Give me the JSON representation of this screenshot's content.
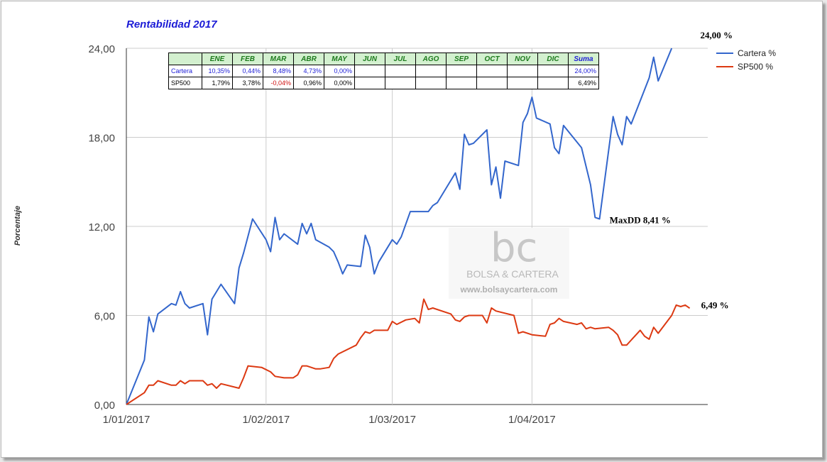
{
  "title": "Rentabilidad 2017",
  "chart_data": {
    "type": "line",
    "title": "Rentabilidad 2017",
    "ylabel": "Porcentaje",
    "xlabel": "",
    "ylim": [
      0,
      24
    ],
    "yticks": [
      0,
      6,
      12,
      18,
      24
    ],
    "ytick_labels": [
      "0,00",
      "6,00",
      "12,00",
      "18,00",
      "24,00"
    ],
    "xlim": [
      "2017-01-01",
      "2017-05-10"
    ],
    "xticks": [
      "2017-01-01",
      "2017-02-01",
      "2017-03-01",
      "2017-04-01"
    ],
    "xtick_labels": [
      "1/01/2017",
      "1/02/2017",
      "1/03/2017",
      "1/04/2017"
    ],
    "grid": true,
    "legend_position": "top-right",
    "series": [
      {
        "name": "Cartera %",
        "color": "#3366cc",
        "points": [
          [
            "2017-01-01",
            0.0
          ],
          [
            "2017-01-05",
            3.0
          ],
          [
            "2017-01-06",
            5.9
          ],
          [
            "2017-01-07",
            4.9
          ],
          [
            "2017-01-08",
            6.1
          ],
          [
            "2017-01-11",
            6.8
          ],
          [
            "2017-01-12",
            6.7
          ],
          [
            "2017-01-13",
            7.6
          ],
          [
            "2017-01-14",
            6.8
          ],
          [
            "2017-01-15",
            6.5
          ],
          [
            "2017-01-18",
            6.8
          ],
          [
            "2017-01-19",
            4.7
          ],
          [
            "2017-01-20",
            7.1
          ],
          [
            "2017-01-22",
            8.1
          ],
          [
            "2017-01-25",
            6.8
          ],
          [
            "2017-01-26",
            9.2
          ],
          [
            "2017-01-27",
            10.2
          ],
          [
            "2017-01-29",
            12.5
          ],
          [
            "2017-02-01",
            11.1
          ],
          [
            "2017-02-02",
            10.3
          ],
          [
            "2017-02-03",
            12.6
          ],
          [
            "2017-02-04",
            11.1
          ],
          [
            "2017-02-05",
            11.5
          ],
          [
            "2017-02-08",
            10.8
          ],
          [
            "2017-02-09",
            12.2
          ],
          [
            "2017-02-10",
            11.5
          ],
          [
            "2017-02-11",
            12.2
          ],
          [
            "2017-02-12",
            11.1
          ],
          [
            "2017-02-15",
            10.6
          ],
          [
            "2017-02-16",
            10.3
          ],
          [
            "2017-02-17",
            9.6
          ],
          [
            "2017-02-18",
            8.8
          ],
          [
            "2017-02-19",
            9.4
          ],
          [
            "2017-02-22",
            9.3
          ],
          [
            "2017-02-23",
            11.4
          ],
          [
            "2017-02-24",
            10.6
          ],
          [
            "2017-02-25",
            8.8
          ],
          [
            "2017-02-26",
            9.6
          ],
          [
            "2017-03-01",
            11.1
          ],
          [
            "2017-03-02",
            10.8
          ],
          [
            "2017-03-03",
            11.3
          ],
          [
            "2017-03-05",
            13.0
          ],
          [
            "2017-03-09",
            13.0
          ],
          [
            "2017-03-10",
            13.4
          ],
          [
            "2017-03-11",
            13.6
          ],
          [
            "2017-03-12",
            14.1
          ],
          [
            "2017-03-15",
            15.6
          ],
          [
            "2017-03-16",
            14.5
          ],
          [
            "2017-03-17",
            18.2
          ],
          [
            "2017-03-18",
            17.5
          ],
          [
            "2017-03-19",
            17.6
          ],
          [
            "2017-03-22",
            18.5
          ],
          [
            "2017-03-23",
            14.8
          ],
          [
            "2017-03-24",
            16.0
          ],
          [
            "2017-03-25",
            13.9
          ],
          [
            "2017-03-26",
            16.4
          ],
          [
            "2017-03-29",
            16.1
          ],
          [
            "2017-03-30",
            19.0
          ],
          [
            "2017-03-31",
            19.6
          ],
          [
            "2017-04-01",
            20.7
          ],
          [
            "2017-04-02",
            19.3
          ],
          [
            "2017-04-05",
            18.9
          ],
          [
            "2017-04-06",
            17.3
          ],
          [
            "2017-04-07",
            16.9
          ],
          [
            "2017-04-08",
            18.8
          ],
          [
            "2017-04-12",
            17.3
          ],
          [
            "2017-04-14",
            14.8
          ],
          [
            "2017-04-15",
            12.6
          ],
          [
            "2017-04-16",
            12.5
          ],
          [
            "2017-04-19",
            19.4
          ],
          [
            "2017-04-20",
            18.2
          ],
          [
            "2017-04-21",
            17.5
          ],
          [
            "2017-04-22",
            19.4
          ],
          [
            "2017-04-23",
            18.9
          ],
          [
            "2017-04-27",
            22.0
          ],
          [
            "2017-04-28",
            23.4
          ],
          [
            "2017-04-29",
            21.8
          ],
          [
            "2017-05-02",
            24.0
          ]
        ]
      },
      {
        "name": "SP500 %",
        "color": "#dc3912",
        "points": [
          [
            "2017-01-01",
            0.0
          ],
          [
            "2017-01-05",
            0.8
          ],
          [
            "2017-01-06",
            1.3
          ],
          [
            "2017-01-07",
            1.3
          ],
          [
            "2017-01-08",
            1.6
          ],
          [
            "2017-01-11",
            1.3
          ],
          [
            "2017-01-12",
            1.3
          ],
          [
            "2017-01-13",
            1.6
          ],
          [
            "2017-01-14",
            1.4
          ],
          [
            "2017-01-15",
            1.6
          ],
          [
            "2017-01-18",
            1.6
          ],
          [
            "2017-01-19",
            1.3
          ],
          [
            "2017-01-20",
            1.4
          ],
          [
            "2017-01-21",
            1.1
          ],
          [
            "2017-01-22",
            1.4
          ],
          [
            "2017-01-26",
            1.1
          ],
          [
            "2017-01-27",
            1.8
          ],
          [
            "2017-01-28",
            2.6
          ],
          [
            "2017-01-31",
            2.5
          ],
          [
            "2017-02-02",
            2.2
          ],
          [
            "2017-02-03",
            1.9
          ],
          [
            "2017-02-05",
            1.8
          ],
          [
            "2017-02-07",
            1.8
          ],
          [
            "2017-02-08",
            2.0
          ],
          [
            "2017-02-09",
            2.6
          ],
          [
            "2017-02-10",
            2.6
          ],
          [
            "2017-02-12",
            2.4
          ],
          [
            "2017-02-13",
            2.4
          ],
          [
            "2017-02-15",
            2.5
          ],
          [
            "2017-02-16",
            3.1
          ],
          [
            "2017-02-17",
            3.4
          ],
          [
            "2017-02-21",
            4.0
          ],
          [
            "2017-02-22",
            4.5
          ],
          [
            "2017-02-23",
            4.9
          ],
          [
            "2017-02-24",
            4.8
          ],
          [
            "2017-02-25",
            5.0
          ],
          [
            "2017-02-28",
            5.0
          ],
          [
            "2017-03-01",
            5.6
          ],
          [
            "2017-03-02",
            5.4
          ],
          [
            "2017-03-04",
            5.7
          ],
          [
            "2017-03-06",
            5.8
          ],
          [
            "2017-03-07",
            5.5
          ],
          [
            "2017-03-08",
            7.1
          ],
          [
            "2017-03-09",
            6.4
          ],
          [
            "2017-03-10",
            6.5
          ],
          [
            "2017-03-14",
            6.1
          ],
          [
            "2017-03-15",
            5.7
          ],
          [
            "2017-03-16",
            5.6
          ],
          [
            "2017-03-17",
            5.9
          ],
          [
            "2017-03-18",
            6.0
          ],
          [
            "2017-03-21",
            6.0
          ],
          [
            "2017-03-22",
            5.5
          ],
          [
            "2017-03-23",
            6.5
          ],
          [
            "2017-03-24",
            6.3
          ],
          [
            "2017-03-28",
            6.0
          ],
          [
            "2017-03-29",
            4.8
          ],
          [
            "2017-03-30",
            4.9
          ],
          [
            "2017-04-01",
            4.7
          ],
          [
            "2017-04-04",
            4.6
          ],
          [
            "2017-04-05",
            5.4
          ],
          [
            "2017-04-06",
            5.5
          ],
          [
            "2017-04-07",
            5.8
          ],
          [
            "2017-04-08",
            5.6
          ],
          [
            "2017-04-11",
            5.4
          ],
          [
            "2017-04-12",
            5.5
          ],
          [
            "2017-04-13",
            5.1
          ],
          [
            "2017-04-14",
            5.2
          ],
          [
            "2017-04-15",
            5.1
          ],
          [
            "2017-04-18",
            5.2
          ],
          [
            "2017-04-19",
            5.0
          ],
          [
            "2017-04-20",
            4.7
          ],
          [
            "2017-04-21",
            4.0
          ],
          [
            "2017-04-22",
            4.0
          ],
          [
            "2017-04-25",
            5.0
          ],
          [
            "2017-04-26",
            4.6
          ],
          [
            "2017-04-27",
            4.4
          ],
          [
            "2017-04-28",
            5.2
          ],
          [
            "2017-04-29",
            4.8
          ],
          [
            "2017-05-02",
            6.0
          ],
          [
            "2017-05-03",
            6.7
          ],
          [
            "2017-05-04",
            6.6
          ],
          [
            "2017-05-05",
            6.7
          ],
          [
            "2017-05-06",
            6.49
          ]
        ]
      }
    ],
    "annotations": [
      {
        "text": "24,00 %",
        "x": "2017-05-02",
        "y": 24.0
      },
      {
        "text": "MaxDD 8,41 %",
        "x": "2017-04-16",
        "y": 12.5
      },
      {
        "text": "6,49 %",
        "x": "2017-05-06",
        "y": 6.49
      }
    ]
  },
  "table": {
    "headers": [
      "",
      "ENE",
      "FEB",
      "MAR",
      "ABR",
      "MAY",
      "JUN",
      "JUL",
      "AGO",
      "SEP",
      "OCT",
      "NOV",
      "DIC",
      "Suma"
    ],
    "rows": [
      {
        "name": "Cartera",
        "cells": [
          "10,35%",
          "0,44%",
          "8,48%",
          "4,73%",
          "0,00%",
          "",
          "",
          "",
          "",
          "",
          "",
          "",
          "24,00%"
        ]
      },
      {
        "name": "SP500",
        "cells": [
          "1,79%",
          "3,78%",
          "-0,04%",
          "0,96%",
          "0,00%",
          "",
          "",
          "",
          "",
          "",
          "",
          "",
          "6,49%"
        ]
      }
    ]
  },
  "watermark": {
    "logo_text": "bc",
    "brand": "BOLSA & CARTERA",
    "url": "www.bolsaycartera.com"
  }
}
